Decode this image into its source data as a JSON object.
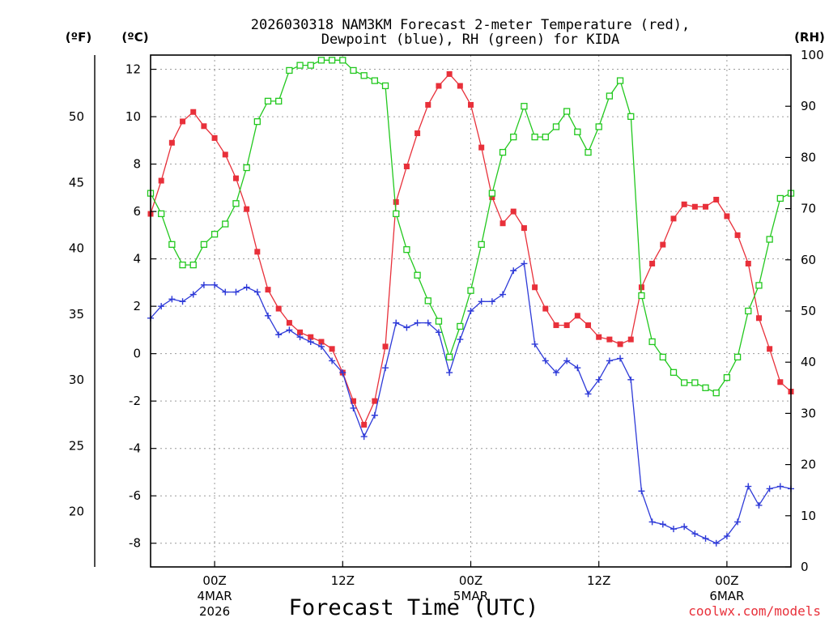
{
  "title_line1": "2026030318 NAM3KM Forecast 2-meter Temperature (red),",
  "title_line2": "Dewpoint (blue), RH (green) for KIDA",
  "units": {
    "fahrenheit": "(ºF)",
    "celsius": "(ºC)",
    "rh": "(RH)"
  },
  "x_axis_title": "Forecast Time (UTC)",
  "credit": "coolwx.com/models",
  "x_ticks": [
    {
      "label": "00Z",
      "sub1": "4MAR",
      "sub2": "2026",
      "hours": 6
    },
    {
      "label": "12Z",
      "sub1": "",
      "sub2": "",
      "hours": 18
    },
    {
      "label": "00Z",
      "sub1": "5MAR",
      "sub2": "",
      "hours": 30
    },
    {
      "label": "12Z",
      "sub1": "",
      "sub2": "",
      "hours": 42
    },
    {
      "label": "00Z",
      "sub1": "6MAR",
      "sub2": "",
      "hours": 54
    }
  ],
  "chart_data": {
    "type": "line",
    "x_unit": "forecast hour from 2026030318",
    "xlim": [
      0,
      60
    ],
    "ylim_celsius": [
      -9,
      12.6
    ],
    "ylim_fahrenheit": [
      15.8,
      54.68
    ],
    "ylim_rh": [
      0,
      100
    ],
    "y_ticks_celsius": [
      -8,
      -6,
      -4,
      -2,
      0,
      2,
      4,
      6,
      8,
      10,
      12
    ],
    "y_ticks_fahrenheit": [
      20,
      25,
      30,
      35,
      40,
      45,
      50
    ],
    "y_ticks_rh": [
      0,
      10,
      20,
      30,
      40,
      50,
      60,
      70,
      80,
      90,
      100
    ],
    "grid": true,
    "series": [
      {
        "key": "temperature",
        "axis": "celsius",
        "color": "#e8303a",
        "marker": "filled-square",
        "values": [
          5.9,
          7.3,
          8.9,
          9.8,
          10.2,
          9.6,
          9.1,
          8.4,
          7.4,
          6.1,
          4.3,
          2.7,
          1.9,
          1.3,
          0.9,
          0.7,
          0.5,
          0.2,
          -0.8,
          -2.0,
          -3.0,
          -2.0,
          0.3,
          6.4,
          7.9,
          9.3,
          10.5,
          11.3,
          11.8,
          11.3,
          10.5,
          8.7,
          6.6,
          5.5,
          6.0,
          5.3,
          2.8,
          1.9,
          1.2,
          1.2,
          1.6,
          1.2,
          0.7,
          0.6,
          0.4,
          0.6,
          2.8,
          3.8,
          4.6,
          5.7,
          6.3,
          6.2,
          6.2,
          6.5,
          5.8,
          5.0,
          3.8,
          1.5,
          0.2,
          -1.2,
          -1.6
        ]
      },
      {
        "key": "dewpoint",
        "axis": "celsius",
        "color": "#2e3ad8",
        "marker": "plus",
        "values": [
          1.5,
          2.0,
          2.3,
          2.2,
          2.5,
          2.9,
          2.9,
          2.6,
          2.6,
          2.8,
          2.6,
          1.6,
          0.8,
          1.0,
          0.7,
          0.5,
          0.3,
          -0.3,
          -0.8,
          -2.3,
          -3.5,
          -2.6,
          -0.6,
          1.3,
          1.1,
          1.3,
          1.3,
          0.9,
          -0.8,
          0.6,
          1.8,
          2.2,
          2.2,
          2.5,
          3.5,
          3.8,
          0.4,
          -0.3,
          -0.8,
          -0.3,
          -0.6,
          -1.7,
          -1.1,
          -0.3,
          -0.2,
          -1.1,
          -5.8,
          -7.1,
          -7.2,
          -7.4,
          -7.3,
          -7.6,
          -7.8,
          -8.0,
          -7.7,
          -7.1,
          -5.6,
          -6.4,
          -5.7,
          -5.6,
          -5.7
        ]
      },
      {
        "key": "relative_humidity",
        "axis": "rh",
        "color": "#22c81e",
        "marker": "open-square",
        "values": [
          73,
          69,
          63,
          59,
          59,
          63,
          65,
          67,
          71,
          78,
          87,
          91,
          91,
          97,
          98,
          98,
          99,
          99,
          99,
          97,
          96,
          95,
          94,
          69,
          62,
          57,
          52,
          48,
          41,
          47,
          54,
          63,
          73,
          81,
          84,
          90,
          84,
          84,
          86,
          89,
          85,
          81,
          86,
          92,
          95,
          88,
          53,
          44,
          41,
          38,
          36,
          36,
          35,
          34,
          37,
          41,
          50,
          55,
          64,
          72,
          73
        ]
      }
    ]
  }
}
